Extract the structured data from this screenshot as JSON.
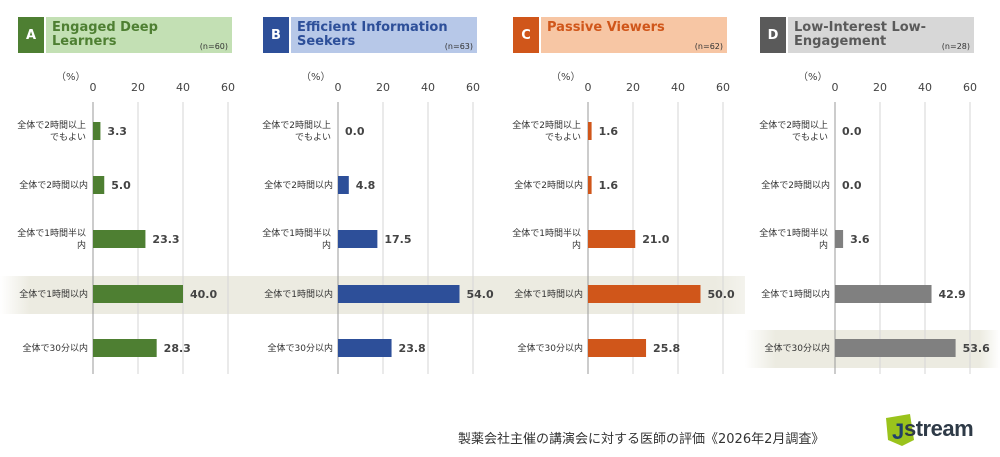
{
  "unit_label": "（%）",
  "footer": "製薬会社主催の講演会に対する医師の評価《2026年2月調査》",
  "logo": "stream",
  "colors": {
    "A": {
      "header_bg": "#c3e0b4",
      "badge": "#4e7f32",
      "bar": "#4e7f32"
    },
    "B": {
      "header_bg": "#b7c8e8",
      "badge": "#2d4f99",
      "bar": "#2d4f99"
    },
    "C": {
      "header_bg": "#f7c6a4",
      "badge": "#d0561a",
      "bar": "#d0561a"
    },
    "D": {
      "header_bg": "#d7d7d7",
      "badge": "#5a5a5a",
      "bar": "#808080"
    },
    "highlight": "#ecebe1"
  },
  "chart_data": [
    {
      "type": "bar",
      "letter": "A",
      "title": "Engaged Deep Learners",
      "n": "(n=60)",
      "categories": [
        "全体で2時間以上でもよい",
        "全体で2時間以内",
        "全体で1時間半以内",
        "全体で1時間以内",
        "全体で30分以内"
      ],
      "values": [
        3.3,
        5.0,
        23.3,
        40.0,
        28.3
      ],
      "labels": [
        "3.3",
        "5.0",
        "23.3",
        "40.0",
        "28.3"
      ],
      "ticks": [
        0,
        20,
        40,
        60
      ],
      "xlim": [
        0,
        60
      ],
      "highlight_index": 3
    },
    {
      "type": "bar",
      "letter": "B",
      "title": "Efficient Information Seekers",
      "n": "(n=63)",
      "categories": [
        "全体で2時間以上でもよい",
        "全体で2時間以内",
        "全体で1時間半以内",
        "全体で1時間以内",
        "全体で30分以内"
      ],
      "values": [
        0.0,
        4.8,
        17.5,
        54.0,
        23.8
      ],
      "labels": [
        "0.0",
        "4.8",
        "17.5",
        "54.0",
        "23.8"
      ],
      "ticks": [
        0,
        20,
        40,
        60
      ],
      "xlim": [
        0,
        60
      ],
      "highlight_index": 3
    },
    {
      "type": "bar",
      "letter": "C",
      "title": "Passive Viewers",
      "n": "(n=62)",
      "categories": [
        "全体で2時間以上でもよい",
        "全体で2時間以内",
        "全体で1時間半以内",
        "全体で1時間以内",
        "全体で30分以内"
      ],
      "values": [
        1.6,
        1.6,
        21.0,
        50.0,
        25.8
      ],
      "labels": [
        "1.6",
        "1.6",
        "21.0",
        "50.0",
        "25.8"
      ],
      "ticks": [
        0,
        20,
        40,
        60
      ],
      "xlim": [
        0,
        60
      ],
      "highlight_index": 3
    },
    {
      "type": "bar",
      "letter": "D",
      "title": "Low-Interest Low-Engagement",
      "n": "(n=28)",
      "categories": [
        "全体で2時間以上でもよい",
        "全体で2時間以内",
        "全体で1時間半以内",
        "全体で1時間以内",
        "全体で30分以内"
      ],
      "values": [
        0.0,
        0.0,
        3.6,
        42.9,
        53.6
      ],
      "labels": [
        "0.0",
        "0.0",
        "3.6",
        "42.9",
        "53.6"
      ],
      "ticks": [
        0,
        20,
        40,
        60
      ],
      "xlim": [
        0,
        60
      ],
      "highlight_index": 4
    }
  ]
}
